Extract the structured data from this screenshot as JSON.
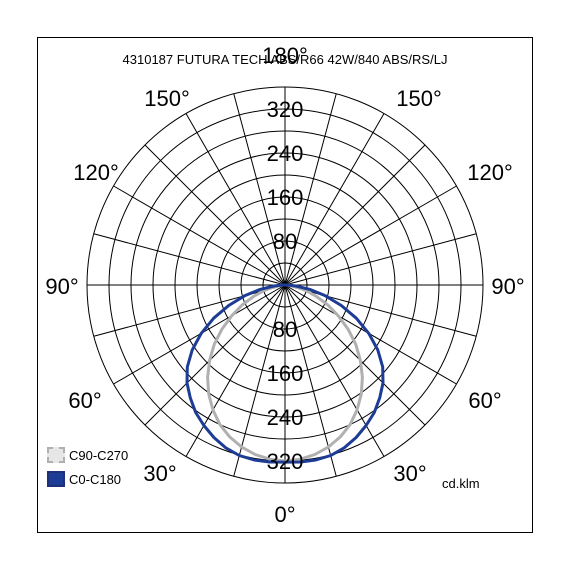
{
  "chart_data": {
    "type": "polar",
    "title": "4310187 FUTURA TECH ABS/R66 42W/840 ABS/RS/LJ",
    "unit": "cd.klm",
    "radial_ticks": [
      "80",
      "160",
      "240",
      "320"
    ],
    "radial_max": 360,
    "angle_labels": {
      "top": "180°",
      "upper_left": "150°",
      "upper_right": "150°",
      "mid_upper_left": "120°",
      "mid_upper_right": "120°",
      "left": "90°",
      "right": "90°",
      "lower_left": "60°",
      "lower_right": "60°",
      "bottom_left": "30°",
      "bottom_right": "30°",
      "bottom": "0°"
    },
    "series": [
      {
        "name": "C90-C270",
        "color": "#b0b0b0",
        "angles_deg": [
          0,
          5,
          10,
          15,
          20,
          25,
          30,
          35,
          40,
          45,
          50,
          55,
          60,
          65,
          70,
          75,
          80,
          85,
          90
        ],
        "values": [
          320,
          318,
          313,
          305,
          294,
          280,
          262,
          242,
          219,
          194,
          168,
          140,
          112,
          86,
          61,
          40,
          22,
          9,
          3
        ]
      },
      {
        "name": "C0-C180",
        "color": "#1c3c96",
        "angles_deg": [
          0,
          5,
          10,
          15,
          20,
          25,
          30,
          35,
          40,
          45,
          50,
          55,
          60,
          65,
          70,
          75,
          80,
          85,
          90
        ],
        "values": [
          322,
          323,
          323,
          321,
          315,
          306,
          295,
          283,
          268,
          252,
          232,
          206,
          176,
          143,
          109,
          76,
          46,
          20,
          5
        ]
      }
    ]
  }
}
